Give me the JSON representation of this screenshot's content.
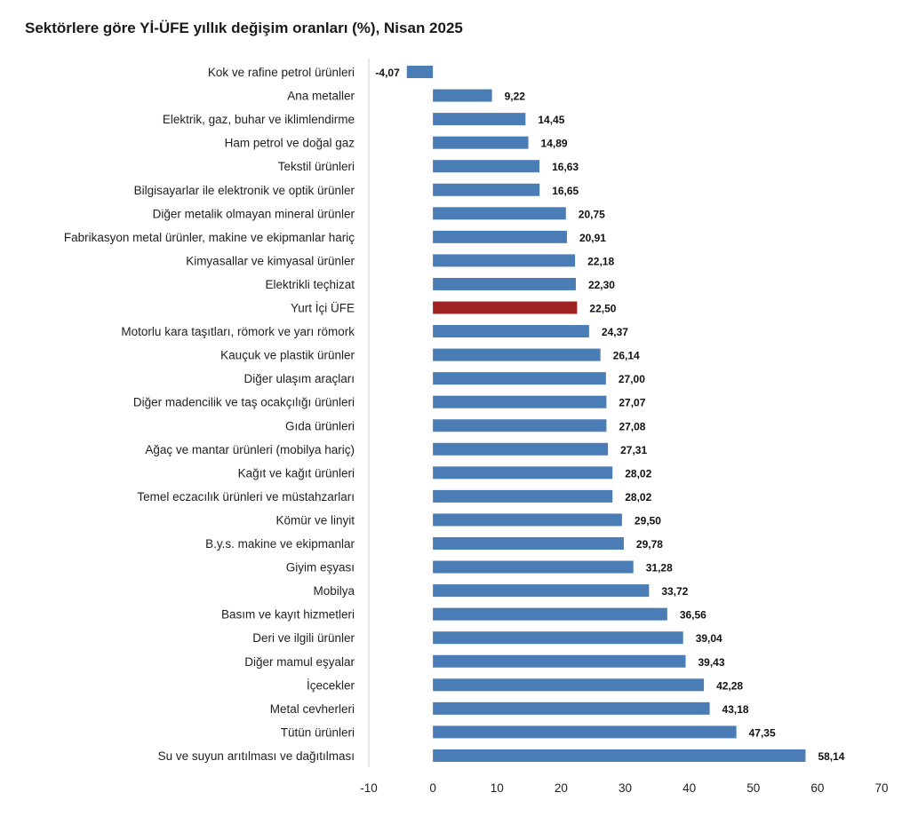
{
  "chart_data": {
    "type": "bar",
    "orientation": "horizontal",
    "title": "Sektörlere göre Yİ-ÜFE yıllık değişim oranları (%), Nisan 2025",
    "xlabel": "",
    "ylabel": "",
    "xlim": [
      -10,
      70
    ],
    "x_ticks": [
      "-10",
      "0",
      "10",
      "20",
      "30",
      "40",
      "50",
      "60",
      "70"
    ],
    "grid": false,
    "legend": "none",
    "bar_color": "#4a7cb5",
    "highlight_color": "#9c2320",
    "highlight_category": "Yurt İçi ÜFE",
    "categories": [
      "Kok ve rafine petrol ürünleri",
      "Ana metaller",
      "Elektrik, gaz, buhar ve iklimlendirme",
      "Ham petrol ve doğal gaz",
      "Tekstil ürünleri",
      "Bilgisayarlar ile elektronik ve optik ürünler",
      "Diğer metalik olmayan mineral ürünler",
      "Fabrikasyon metal ürünler, makine ve ekipmanlar hariç",
      "Kimyasallar ve kimyasal ürünler",
      "Elektrikli teçhizat",
      "Yurt İçi ÜFE",
      "Motorlu kara taşıtları, römork ve yarı römork",
      "Kauçuk ve plastik ürünler",
      "Diğer ulaşım araçları",
      "Diğer madencilik ve taş ocakçılığı ürünleri",
      "Gıda ürünleri",
      "Ağaç ve mantar ürünleri (mobilya hariç)",
      "Kağıt ve kağıt ürünleri",
      "Temel eczacılık ürünleri ve müstahzarları",
      "Kömür ve linyit",
      "B.y.s. makine ve ekipmanlar",
      "Giyim eşyası",
      "Mobilya",
      "Basım ve kayıt hizmetleri",
      "Deri ve ilgili ürünler",
      "Diğer mamul eşyalar",
      "İçecekler",
      "Metal cevherleri",
      "Tütün ürünleri",
      "Su ve suyun arıtılması ve dağıtılması"
    ],
    "values": [
      -4.07,
      9.22,
      14.45,
      14.89,
      16.63,
      16.65,
      20.75,
      20.91,
      22.18,
      22.3,
      22.5,
      24.37,
      26.14,
      27.0,
      27.07,
      27.08,
      27.31,
      28.02,
      28.02,
      29.5,
      29.78,
      31.28,
      33.72,
      36.56,
      39.04,
      39.43,
      42.28,
      43.18,
      47.35,
      58.14
    ],
    "value_labels": [
      "-4,07",
      "9,22",
      "14,45",
      "14,89",
      "16,63",
      "16,65",
      "20,75",
      "20,91",
      "22,18",
      "22,30",
      "22,50",
      "24,37",
      "26,14",
      "27,00",
      "27,07",
      "27,08",
      "27,31",
      "28,02",
      "28,02",
      "29,50",
      "29,78",
      "31,28",
      "33,72",
      "36,56",
      "39,04",
      "39,43",
      "42,28",
      "43,18",
      "47,35",
      "58,14"
    ]
  }
}
